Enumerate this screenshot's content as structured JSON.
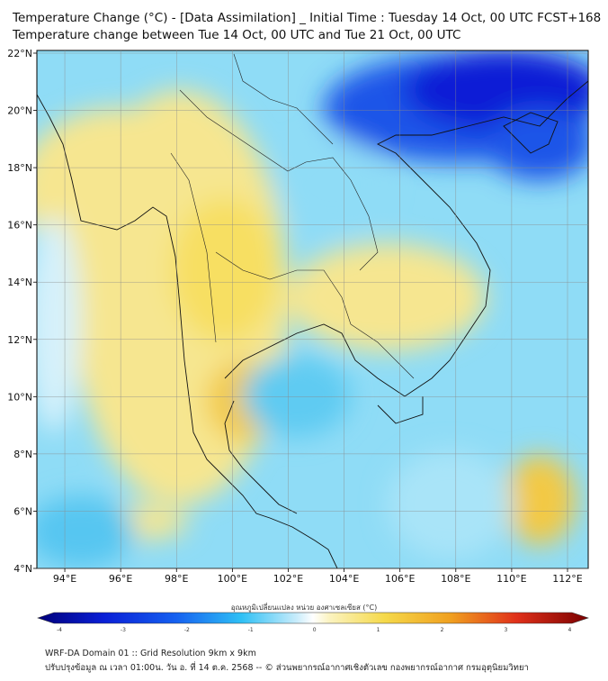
{
  "title_line1": "Temperature Change (°C) - [Data Assimilation] _ Initial Time : Tuesday 14 Oct, 00 UTC FCST+168",
  "title_line2": "Temperature change between Tue 14 Oct, 00 UTC and Tue 21 Oct, 00 UTC",
  "lat_ticks": [
    "22°N",
    "20°N",
    "18°N",
    "16°N",
    "14°N",
    "12°N",
    "10°N",
    "8°N",
    "6°N",
    "4°N"
  ],
  "lon_ticks": [
    "94°E",
    "96°E",
    "98°E",
    "100°E",
    "102°E",
    "104°E",
    "106°E",
    "108°E",
    "110°E",
    "112°E"
  ],
  "colorbar": {
    "label": "อุณหภูมิเปลี่ยนแปลง หน่วย องศาเซลเซียส (°C)",
    "ticks": [
      "-4",
      "-3",
      "-2",
      "-1",
      "0",
      "1",
      "2",
      "3",
      "4"
    ],
    "range": [
      -4,
      4
    ]
  },
  "footer_line1": "WRF-DA Domain 01 :: Grid Resolution 9km x 9km",
  "footer_line2": "ปรับปรุงข้อมูล ณ เวลา 01:00น. วัน อ. ที่ 14 ต.ค. 2568 -- © ส่วนพยากรณ์อากาศเชิงตัวเลข กองพยากรณ์อากาศ กรมอุตุนิยมวิทยา",
  "colors": {
    "cold_strong": "#0a1fd6",
    "cold": "#22b9f2",
    "neutral": "#eef8fd",
    "warm": "#f6e27a",
    "warm_strong": "#f0a82a"
  }
}
